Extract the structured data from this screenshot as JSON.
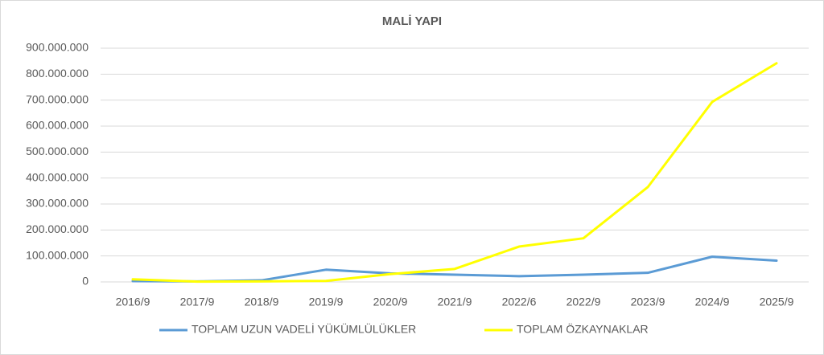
{
  "chart_data": {
    "type": "line",
    "title": "MALİ YAPI",
    "categories": [
      "2016/9",
      "2017/9",
      "2018/9",
      "2019/9",
      "2020/9",
      "2021/9",
      "2022/6",
      "2022/9",
      "2023/9",
      "2024/9",
      "2025/9"
    ],
    "series": [
      {
        "name": "TOPLAM UZUN VADELİ YÜKÜMLÜLÜKLER",
        "color": "#5b9bd5",
        "values": [
          3000000,
          2000000,
          6000000,
          47000000,
          33000000,
          28000000,
          22000000,
          28000000,
          35000000,
          97000000,
          82000000
        ]
      },
      {
        "name": "TOPLAM ÖZKAYNAKLAR",
        "color": "#ffff00",
        "values": [
          10000000,
          1000000,
          2000000,
          4000000,
          30000000,
          50000000,
          136000000,
          168000000,
          365000000,
          693000000,
          842000000
        ]
      }
    ],
    "ylim": [
      0,
      900000000
    ],
    "yticks": [
      0,
      {
        "value": 100000000,
        "label": "100.000.000"
      },
      {
        "value": 200000000,
        "label": "200.000.000"
      },
      {
        "value": 300000000,
        "label": "300.000.000"
      },
      {
        "value": 400000000,
        "label": "400.000.000"
      },
      {
        "value": 500000000,
        "label": "500.000.000"
      },
      {
        "value": 600000000,
        "label": "600.000.000"
      },
      {
        "value": 700000000,
        "label": "700.000.000"
      },
      {
        "value": 800000000,
        "label": "800.000.000"
      },
      {
        "value": 900000000,
        "label": "900.000.000"
      }
    ],
    "grid": true,
    "legend": "bottom"
  }
}
